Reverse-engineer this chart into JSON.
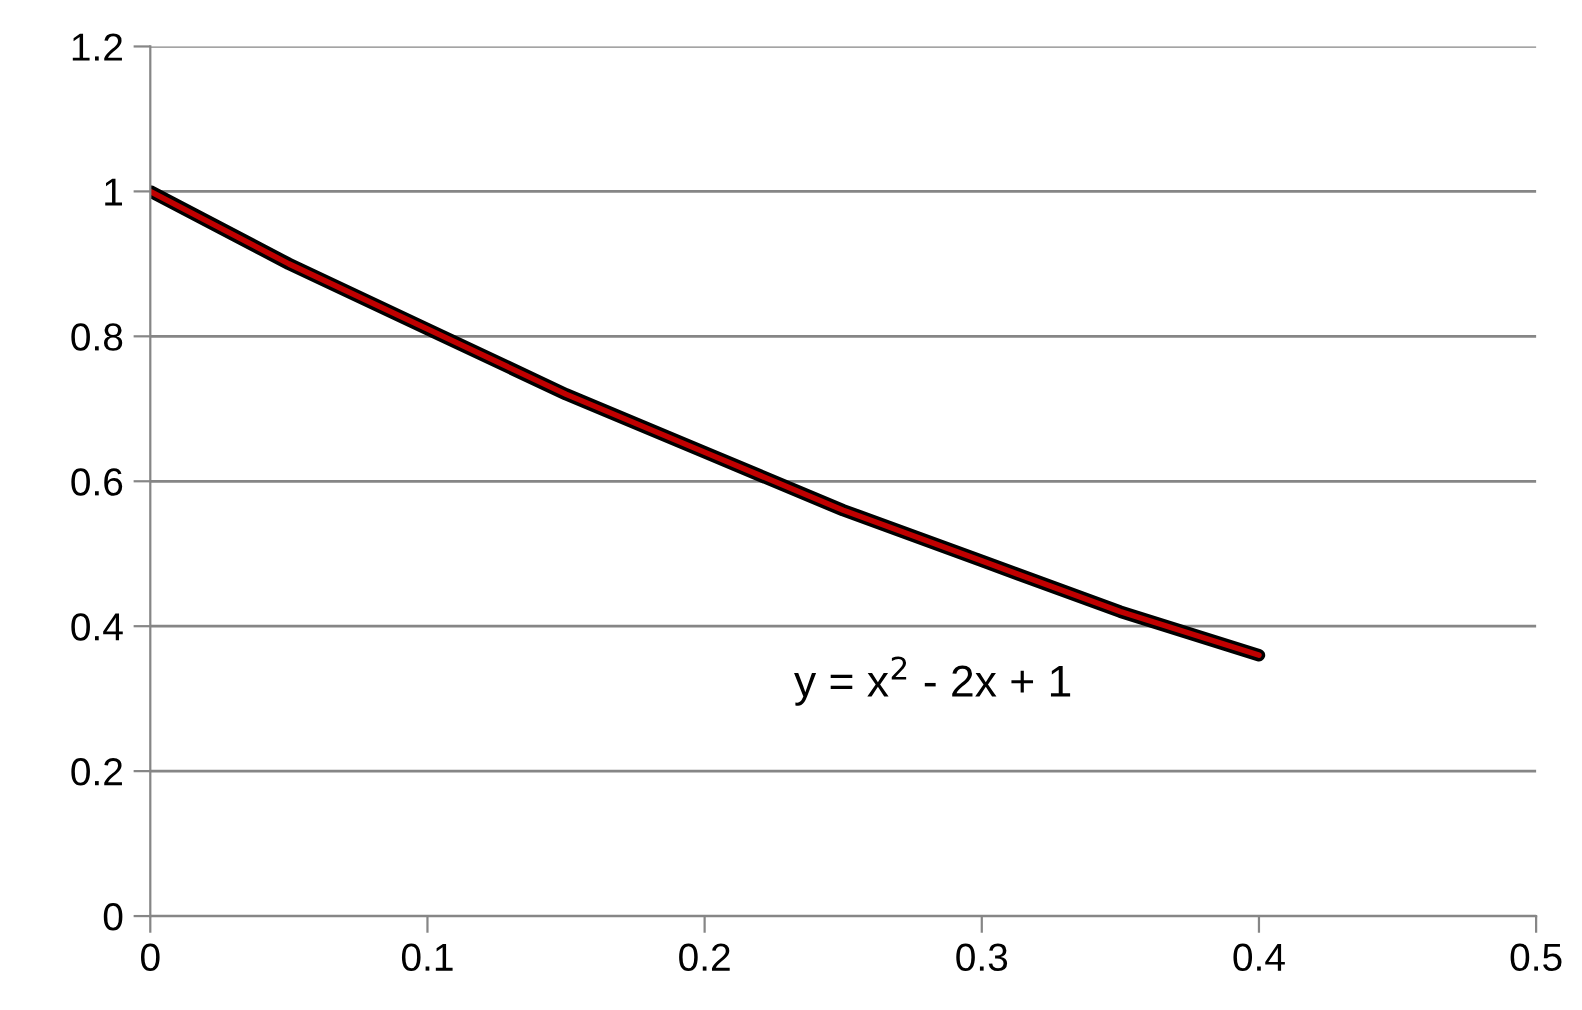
{
  "chart_data": {
    "type": "line",
    "x": [
      0,
      0.05,
      0.1,
      0.15,
      0.2,
      0.25,
      0.3,
      0.35,
      0.4
    ],
    "series": [
      {
        "color": "#000000",
        "values": [
          1,
          0.9,
          0.81,
          0.72,
          0.64,
          0.56,
          0.49,
          0.42,
          0.36
        ]
      },
      {
        "color": "#c00000",
        "values": [
          1,
          0.9,
          0.81,
          0.72,
          0.64,
          0.56,
          0.49,
          0.42,
          0.36
        ]
      }
    ],
    "annotations": [
      "y = x$^{2}$ - 2x + 1"
    ],
    "xlim": [
      0,
      0.5
    ],
    "xticks": [
      0,
      0.1,
      0.2,
      0.3,
      0.4,
      0.5
    ],
    "ylim": [
      0,
      1.2
    ],
    "yticks": [
      0,
      0.2,
      0.4,
      0.6,
      0.8,
      1,
      1.2
    ],
    "grid": "y",
    "marker": "none",
    "line_style": "solid",
    "legend": false
  }
}
